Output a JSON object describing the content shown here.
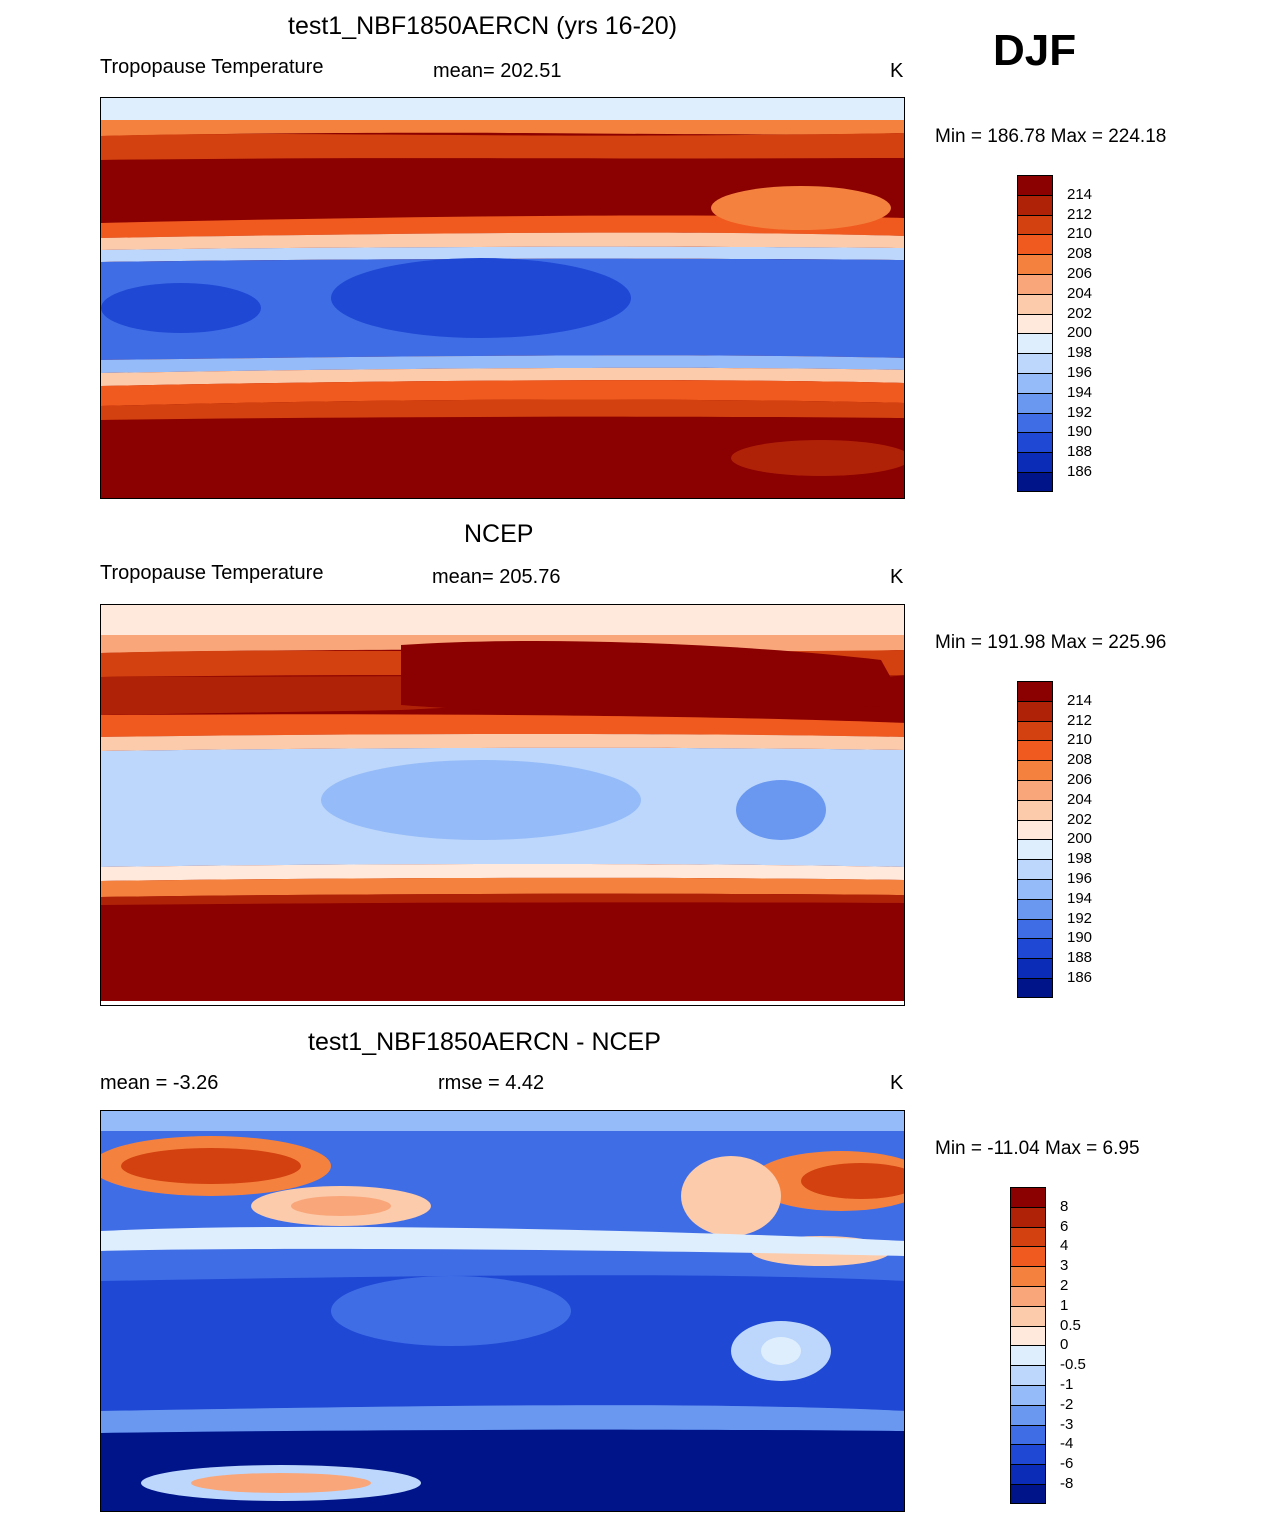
{
  "season": "DJF",
  "panels": [
    {
      "id": "model",
      "title": "test1_NBF1850AERCN (yrs 16-20)",
      "left_label": "Tropopause Temperature",
      "center_label": "mean= 202.51",
      "units": "K",
      "minmax": "Min = 186.78 Max = 224.18",
      "colorbar_labels": [
        "214",
        "212",
        "210",
        "208",
        "206",
        "204",
        "202",
        "200",
        "198",
        "196",
        "194",
        "192",
        "190",
        "188",
        "186"
      ]
    },
    {
      "id": "obs",
      "title": "NCEP",
      "left_label": "Tropopause Temperature",
      "center_label": "mean= 205.76",
      "units": "K",
      "minmax": "Min = 191.98 Max = 225.96",
      "colorbar_labels": [
        "214",
        "212",
        "210",
        "208",
        "206",
        "204",
        "202",
        "200",
        "198",
        "196",
        "194",
        "192",
        "190",
        "188",
        "186"
      ]
    },
    {
      "id": "diff",
      "title": "test1_NBF1850AERCN - NCEP",
      "left_label": "mean =  -3.26",
      "center_label": "rmse =   4.42",
      "units": "K",
      "minmax": "Min = -11.04 Max =   6.95",
      "colorbar_labels": [
        "8",
        "6",
        "4",
        "3",
        "2",
        "1",
        "0.5",
        "0",
        "-0.5",
        "-1",
        "-2",
        "-3",
        "-4",
        "-6",
        "-8"
      ]
    }
  ],
  "colors": {
    "field_scale": [
      "#8b0000",
      "#b02208",
      "#d2410f",
      "#f05a1e",
      "#f5813e",
      "#f9a67a",
      "#fccbab",
      "#fee9dc",
      "#dfeefd",
      "#bcd7fb",
      "#95bbf8",
      "#6a98f1",
      "#3f6de6",
      "#1f48d4",
      "#0b2cb6",
      "#001489"
    ],
    "diff_scale": [
      "#8b0000",
      "#b02208",
      "#d2410f",
      "#f05a1e",
      "#f5813e",
      "#f9a67a",
      "#fccbab",
      "#fee9dc",
      "#dfeefd",
      "#bcd7fb",
      "#95bbf8",
      "#6a98f1",
      "#3f6de6",
      "#1f48d4",
      "#0b2cb6",
      "#001489"
    ]
  }
}
